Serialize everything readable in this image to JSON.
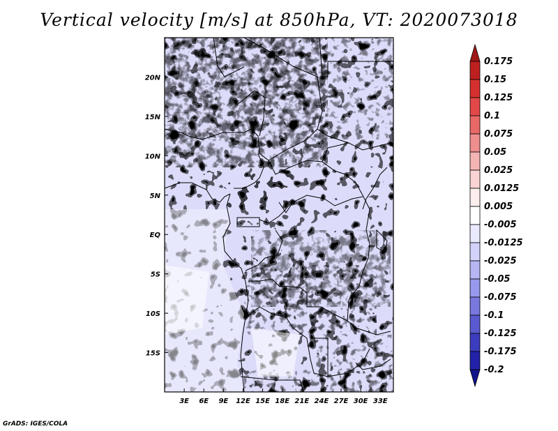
{
  "title": "Vertical velocity [m/s] at 850hPa, VT: 2020073018",
  "credit": "GrADS: IGES/COLA",
  "map": {
    "lon_range": [
      0,
      35
    ],
    "lat_range": [
      -20,
      25
    ],
    "lat_ticks": [
      {
        "value": 20,
        "label": "20N"
      },
      {
        "value": 15,
        "label": "15N"
      },
      {
        "value": 10,
        "label": "10N"
      },
      {
        "value": 5,
        "label": "5N"
      },
      {
        "value": 0,
        "label": "EQ"
      },
      {
        "value": -5,
        "label": "5S"
      },
      {
        "value": -10,
        "label": "10S"
      },
      {
        "value": -15,
        "label": "15S"
      }
    ],
    "lon_ticks": [
      {
        "value": 3,
        "label": "3E"
      },
      {
        "value": 6,
        "label": "6E"
      },
      {
        "value": 9,
        "label": "9E"
      },
      {
        "value": 12,
        "label": "12E"
      },
      {
        "value": 15,
        "label": "15E"
      },
      {
        "value": 18,
        "label": "18E"
      },
      {
        "value": 21,
        "label": "21E"
      },
      {
        "value": 24,
        "label": "24E"
      },
      {
        "value": 27,
        "label": "27E"
      },
      {
        "value": 30,
        "label": "30E"
      },
      {
        "value": 33,
        "label": "33E"
      }
    ]
  },
  "colorbar": {
    "labels": [
      "0.175",
      "0.15",
      "0.125",
      "0.1",
      "0.075",
      "0.05",
      "0.025",
      "0.0125",
      "0.005",
      "-0.005",
      "-0.0125",
      "-0.025",
      "-0.05",
      "-0.075",
      "-0.1",
      "-0.125",
      "-0.175",
      "-0.2"
    ],
    "colors": [
      "#a01818",
      "#be2020",
      "#d53030",
      "#e24848",
      "#e86868",
      "#ef8e8e",
      "#f5b4b4",
      "#fad4d4",
      "#fdeeee",
      "#ffffff",
      "#eaeaff",
      "#d2d2fa",
      "#b6b6f4",
      "#9898ec",
      "#7878de",
      "#5a5ad0",
      "#3c3cbe",
      "#2222a8",
      "#12128c"
    ]
  }
}
